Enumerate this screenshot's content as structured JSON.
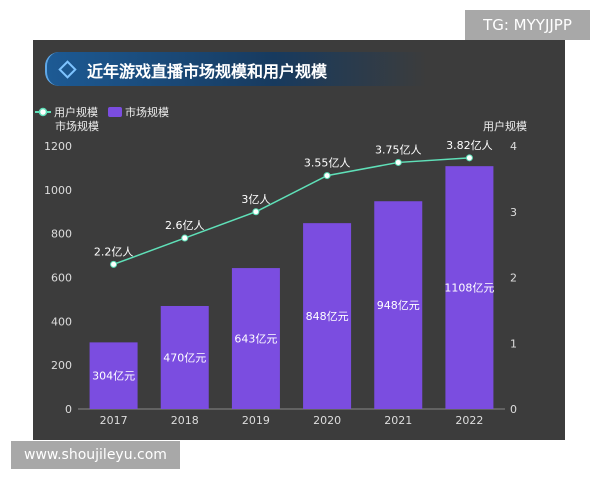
{
  "watermarks": {
    "top": "TG: MYYJJPP",
    "bottom": "www.shoujileyu.com"
  },
  "chart_data": {
    "type": "bar",
    "title": "近年游戏直播市场规模和用户规模",
    "categories": [
      "2017",
      "2018",
      "2019",
      "2020",
      "2021",
      "2022"
    ],
    "series": [
      {
        "name": "市场规模",
        "type": "bar",
        "axis": "left",
        "values": [
          304,
          470,
          643,
          848,
          948,
          1108
        ],
        "labels": [
          "304亿元",
          "470亿元",
          "643亿元",
          "848亿元",
          "948亿元",
          "1108亿元"
        ],
        "color": "#7b4de0"
      },
      {
        "name": "用户规模",
        "type": "line",
        "axis": "right",
        "values": [
          2.2,
          2.6,
          3,
          3.55,
          3.75,
          3.82
        ],
        "labels": [
          "2.2亿人",
          "2.6亿人",
          "3亿人",
          "3.55亿人",
          "3.75亿人",
          "3.82亿人"
        ],
        "color": "#5fe0b8"
      }
    ],
    "ylabel": "市场规模",
    "ylim": [
      0,
      1200
    ],
    "yticks": [
      0,
      200,
      400,
      600,
      800,
      1000,
      1200
    ],
    "y2label": "用户规模",
    "y2lim": [
      0,
      4
    ],
    "y2ticks": [
      0,
      1,
      2,
      3,
      4
    ],
    "legend": "top-left",
    "grid": false
  }
}
